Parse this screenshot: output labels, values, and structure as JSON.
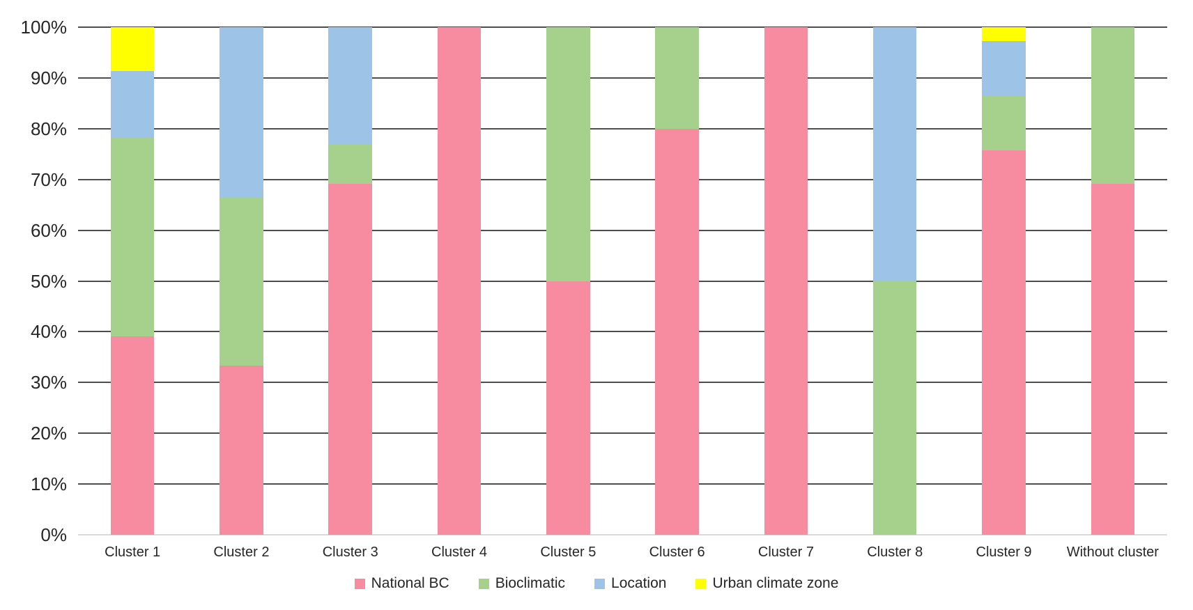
{
  "chart_data": {
    "type": "bar",
    "subtype": "stacked-100-percent",
    "title": "",
    "xlabel": "",
    "ylabel": "",
    "ylim": [
      0,
      100
    ],
    "grid": true,
    "legend_position": "bottom",
    "categories": [
      "Cluster 1",
      "Cluster 2",
      "Cluster 3",
      "Cluster 4",
      "Cluster 5",
      "Cluster 6",
      "Cluster 7",
      "Cluster 8",
      "Cluster 9",
      "Without cluster"
    ],
    "series": [
      {
        "name": "National BC",
        "color": "#F78CA0",
        "values": [
          39.1,
          33.3,
          69.2,
          100,
          50,
          80,
          100,
          0,
          75.7,
          69.2
        ]
      },
      {
        "name": "Bioclimatic",
        "color": "#A5D18D",
        "values": [
          39.1,
          33.3,
          7.7,
          0,
          50,
          20,
          0,
          50,
          10.8,
          30.8
        ]
      },
      {
        "name": "Location",
        "color": "#9DC3E6",
        "values": [
          13.1,
          33.4,
          23.1,
          0,
          0,
          0,
          0,
          50,
          10.8,
          0
        ]
      },
      {
        "name": "Urban climate zone",
        "color": "#FFFF00",
        "values": [
          8.7,
          0,
          0,
          0,
          0,
          0,
          0,
          0,
          2.7,
          0
        ]
      }
    ],
    "y_axis": {
      "min": 0,
      "max": 100,
      "step": 10,
      "tick_labels": [
        "0%",
        "10%",
        "20%",
        "30%",
        "40%",
        "50%",
        "60%",
        "70%",
        "80%",
        "90%",
        "100%"
      ]
    }
  },
  "colors": {
    "gridline": "#4d4d4d",
    "baseline": "#d9d9d9",
    "text": "#262626"
  }
}
